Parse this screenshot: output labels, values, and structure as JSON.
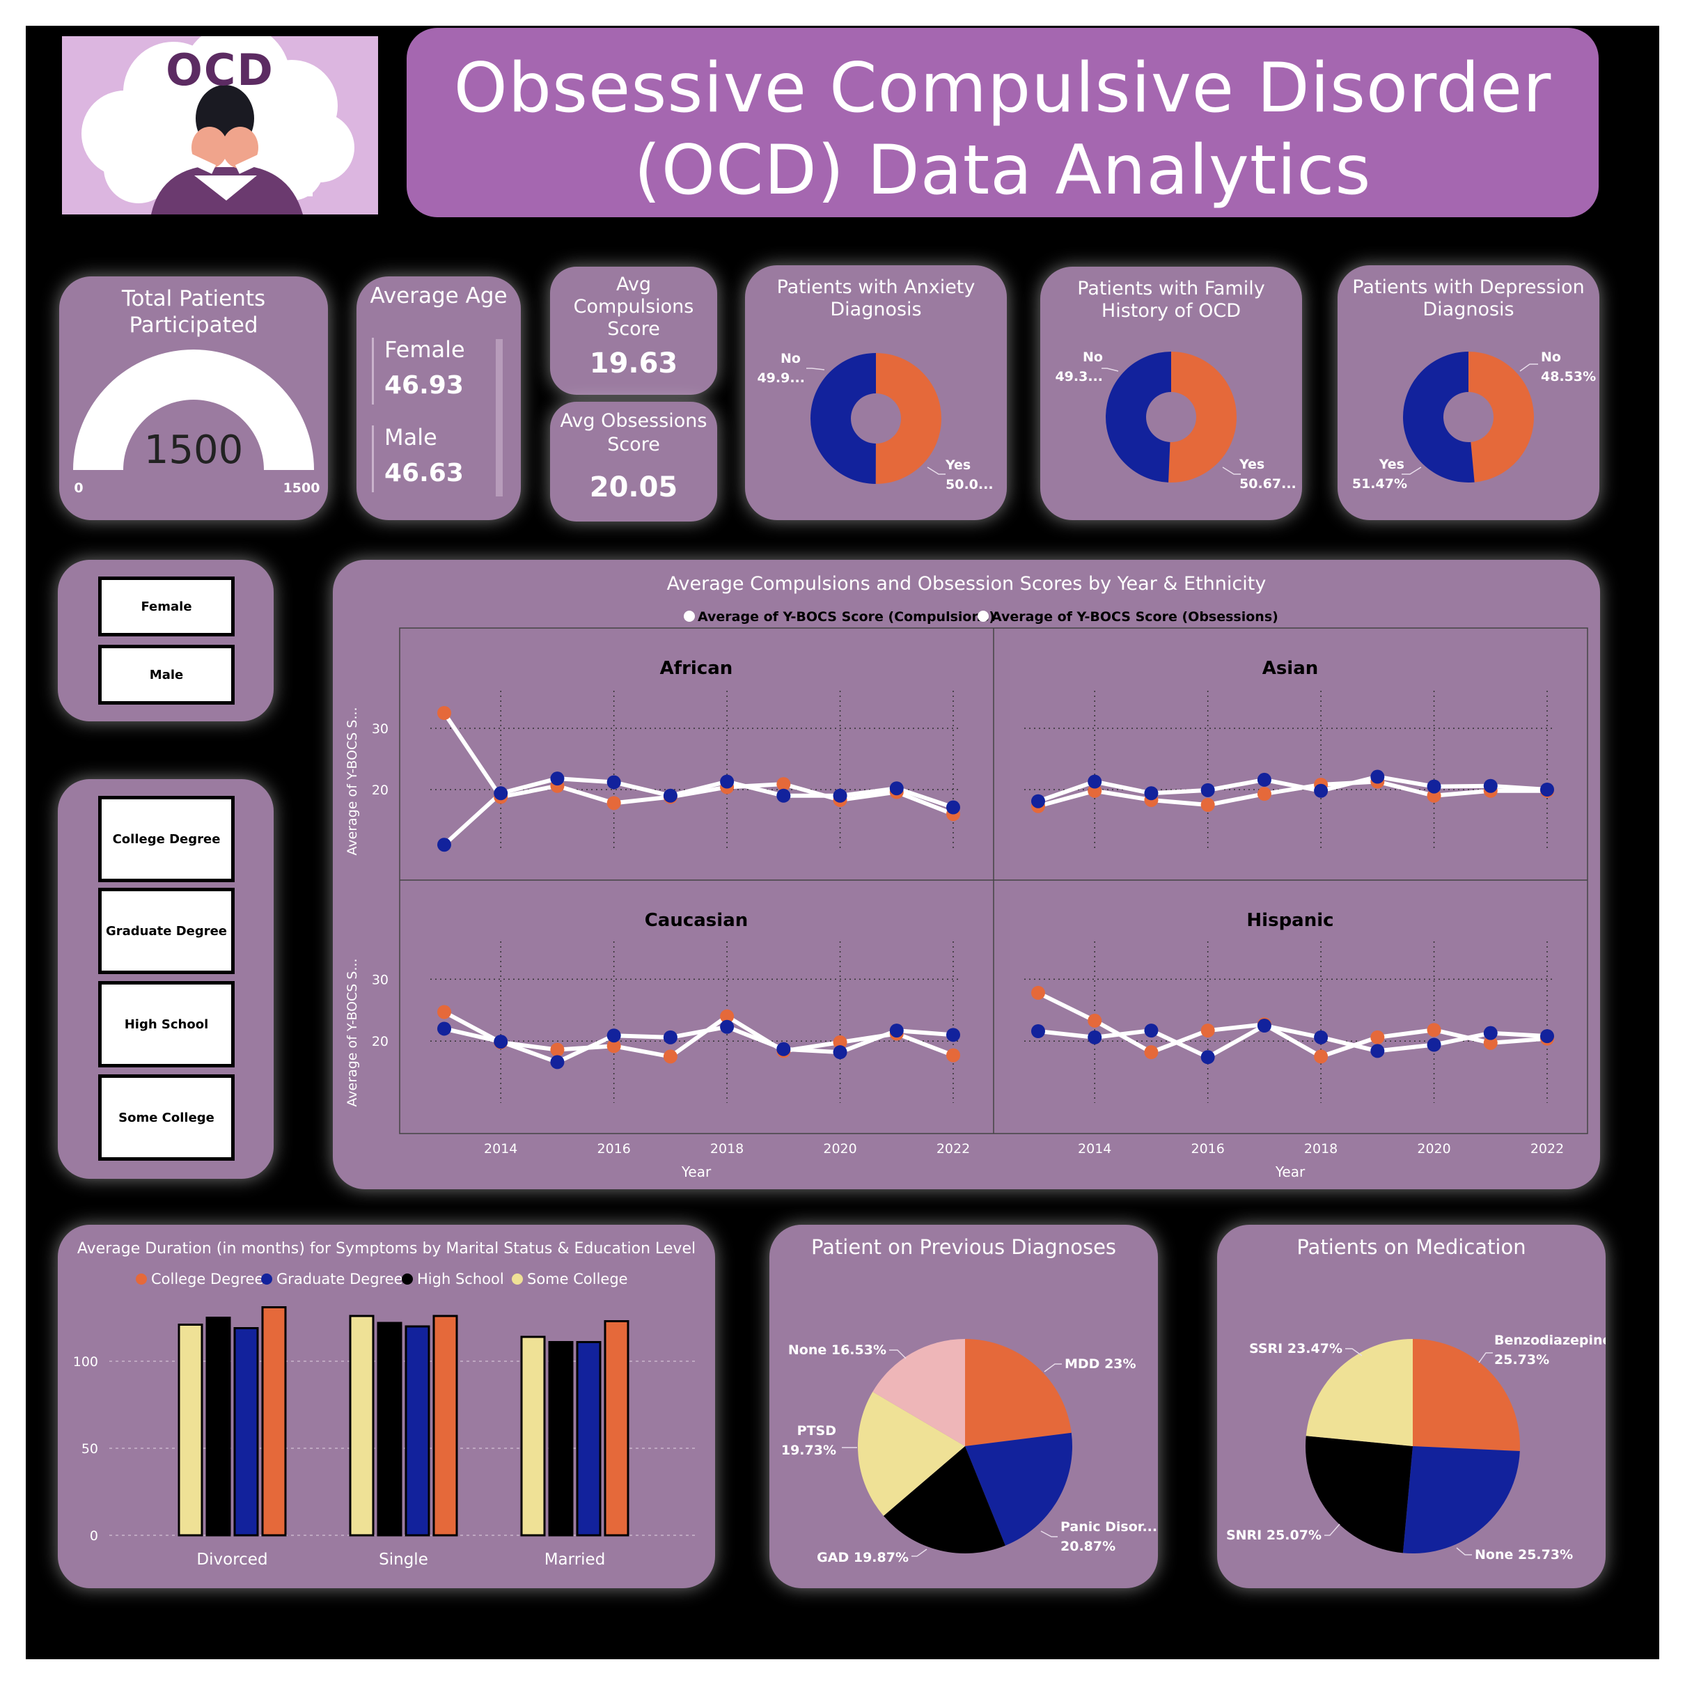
{
  "header": {
    "logo_text": "OCD",
    "title_line1": "Obsessive Compulsive Disorder",
    "title_line2": "(OCD) Data Analytics"
  },
  "kpis": {
    "total_patients": {
      "title_line1": "Total Patients",
      "title_line2": "Participated",
      "value": "1500",
      "min": "0",
      "max": "1500"
    },
    "average_age": {
      "title": "Average Age",
      "female_label": "Female",
      "female_value": "46.93",
      "male_label": "Male",
      "male_value": "46.63"
    },
    "avg_compulsions": {
      "title_line1": "Avg",
      "title_line2": "Compulsions",
      "title_line3": "Score",
      "value": "19.63"
    },
    "avg_obsessions": {
      "title_line1": "Avg Obsessions",
      "title_line2": "Score",
      "value": "20.05"
    }
  },
  "slicers": {
    "gender": [
      "Female",
      "Male"
    ],
    "education": [
      "College Degree",
      "Graduate Degree",
      "High School",
      "Some College"
    ]
  },
  "colors": {
    "orange": "#e5693a",
    "blue": "#12229c",
    "black": "#000000",
    "yellow": "#efe196",
    "pink": "#eeb6b8",
    "card": "#9b7ba0",
    "title_bar": "#a567b0"
  },
  "chart_data": [
    {
      "id": "anxiety",
      "type": "pie",
      "donut": true,
      "title_line1": "Patients with Anxiety",
      "title_line2": "Diagnosis",
      "slices": [
        {
          "label": "Yes",
          "value": 50.0,
          "display": "50.0..."
        },
        {
          "label": "No",
          "value": 49.9,
          "display": "49.9..."
        }
      ]
    },
    {
      "id": "family",
      "type": "pie",
      "donut": true,
      "title_line1": "Patients with Family",
      "title_line2": "History of OCD",
      "slices": [
        {
          "label": "Yes",
          "value": 50.67,
          "display": "50.67..."
        },
        {
          "label": "No",
          "value": 49.33,
          "display": "49.3..."
        }
      ]
    },
    {
      "id": "depression",
      "type": "pie",
      "donut": true,
      "title_line1": "Patients with Depression",
      "title_line2": "Diagnosis",
      "slices": [
        {
          "label": "No",
          "value": 48.53,
          "display": "48.53%"
        },
        {
          "label": "Yes",
          "value": 51.47,
          "display": "51.47%"
        }
      ]
    },
    {
      "id": "scores",
      "type": "line",
      "title": "Average Compulsions and Obsession Scores by Year & Ethnicity",
      "legend": [
        "Average of Y-BOCS Score (Compulsions)",
        "Average of Y-BOCS Score (Obsessions)"
      ],
      "ylabel": "Average of Y-BOCS S...",
      "xlabel": "Year",
      "x": [
        2013,
        2014,
        2015,
        2016,
        2017,
        2018,
        2019,
        2020,
        2021,
        2022
      ],
      "x_ticks": [
        2014,
        2016,
        2018,
        2020,
        2022
      ],
      "x_tick_labels": [
        "2014",
        "2016",
        "2018",
        "2020",
        "2022"
      ],
      "y_ticks": [
        20,
        30
      ],
      "y_tick_labels": [
        "20",
        "30"
      ],
      "ylim": [
        10,
        35
      ],
      "panels": [
        {
          "name": "African",
          "compulsions": [
            11,
            19.4,
            21.8,
            21.2,
            19,
            21.3,
            19,
            19,
            20.2,
            17.1
          ],
          "obsessions": [
            32.5,
            18.8,
            20.6,
            17.8,
            18.8,
            20.4,
            20.9,
            18.3,
            19.6,
            16
          ]
        },
        {
          "name": "Asian",
          "compulsions": [
            18.1,
            21.3,
            19.4,
            19.9,
            21.6,
            19.8,
            22.1,
            20.5,
            20.6,
            20
          ],
          "obsessions": [
            17.3,
            19.8,
            18.3,
            17.5,
            19.3,
            20.8,
            21.3,
            19,
            19.8,
            19.8
          ]
        },
        {
          "name": "Caucasian",
          "compulsions": [
            22,
            19.9,
            16.6,
            20.9,
            20.6,
            22.3,
            18.7,
            18.2,
            21.7,
            21
          ],
          "obsessions": [
            24.7,
            19.8,
            18.6,
            19.2,
            17.5,
            24,
            18.4,
            19.8,
            21.2,
            17.7
          ]
        },
        {
          "name": "Hispanic",
          "compulsions": [
            21.6,
            20.6,
            21.7,
            17.4,
            22.5,
            20.6,
            18.4,
            19.4,
            21.3,
            20.8
          ],
          "obsessions": [
            27.8,
            23.3,
            18.2,
            21.7,
            22.7,
            17.5,
            20.6,
            21.8,
            19.7,
            20.4
          ]
        }
      ]
    },
    {
      "id": "duration",
      "type": "bar",
      "title": "Average Duration (in months) for Symptoms by Marital Status & Education Level",
      "categories": [
        "Divorced",
        "Single",
        "Married"
      ],
      "y_ticks": [
        0,
        50,
        100
      ],
      "y_tick_labels": [
        "0",
        "50",
        "100"
      ],
      "ylim": [
        0,
        140
      ],
      "series": [
        {
          "name": "College Degree",
          "values": [
            131,
            126,
            123
          ]
        },
        {
          "name": "Graduate Degree",
          "values": [
            119,
            120,
            111
          ]
        },
        {
          "name": "High School",
          "values": [
            125,
            122,
            111
          ]
        },
        {
          "name": "Some College",
          "values": [
            121,
            126,
            114
          ]
        }
      ],
      "draw_order": [
        "Some College",
        "High School",
        "Graduate Degree",
        "College Degree"
      ]
    },
    {
      "id": "previous",
      "type": "pie",
      "title": "Patient on Previous Diagnoses",
      "slices": [
        {
          "label": "MDD",
          "value": 23,
          "display": "MDD 23%"
        },
        {
          "label": "Panic Disorder",
          "value": 20.87,
          "display": "Panic Disor...",
          "display2": "20.87%"
        },
        {
          "label": "GAD",
          "value": 19.87,
          "display": "GAD 19.87%"
        },
        {
          "label": "PTSD",
          "value": 19.73,
          "display": "PTSD",
          "display2": "19.73%"
        },
        {
          "label": "None",
          "value": 16.53,
          "display": "None 16.53%"
        }
      ]
    },
    {
      "id": "medication",
      "type": "pie",
      "title": "Patients on Medication",
      "slices": [
        {
          "label": "Benzodiazepine",
          "value": 25.73,
          "display": "Benzodiazepine",
          "display2": "25.73%"
        },
        {
          "label": "None",
          "value": 25.73,
          "display": "None 25.73%"
        },
        {
          "label": "SNRI",
          "value": 25.07,
          "display": "SNRI 25.07%"
        },
        {
          "label": "SSRI",
          "value": 23.47,
          "display": "SSRI 23.47%"
        }
      ]
    }
  ]
}
